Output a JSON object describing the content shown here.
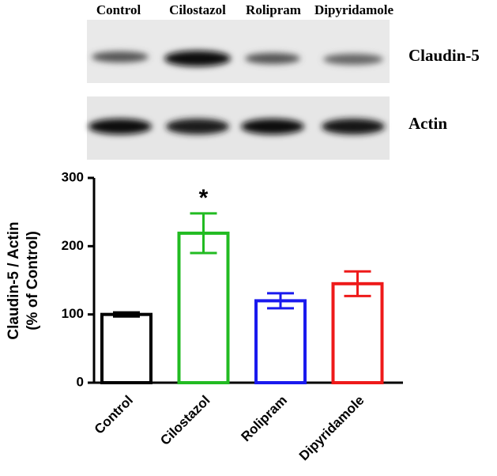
{
  "blot": {
    "lanes": [
      "Control",
      "Cilostazol",
      "Rolipram",
      "Dipyridamole"
    ],
    "bands": [
      "Claudin-5",
      "Actin"
    ]
  },
  "chart_data": {
    "type": "bar",
    "y_label": [
      "Claudin-5 / Actin",
      "(% of Control)"
    ],
    "categories": [
      "Control",
      "Cilostazol",
      "Rolipram",
      "Dipyridamole"
    ],
    "values": [
      100,
      219,
      120,
      145
    ],
    "errors": [
      3,
      29,
      11,
      18
    ],
    "colors": [
      "#000000",
      "#22bb22",
      "#1a1aee",
      "#ee1a1a"
    ],
    "ylim": [
      0,
      300
    ],
    "yticks": [
      0,
      100,
      200,
      300
    ],
    "annotation": {
      "text": "*",
      "category": "Cilostazol"
    }
  }
}
